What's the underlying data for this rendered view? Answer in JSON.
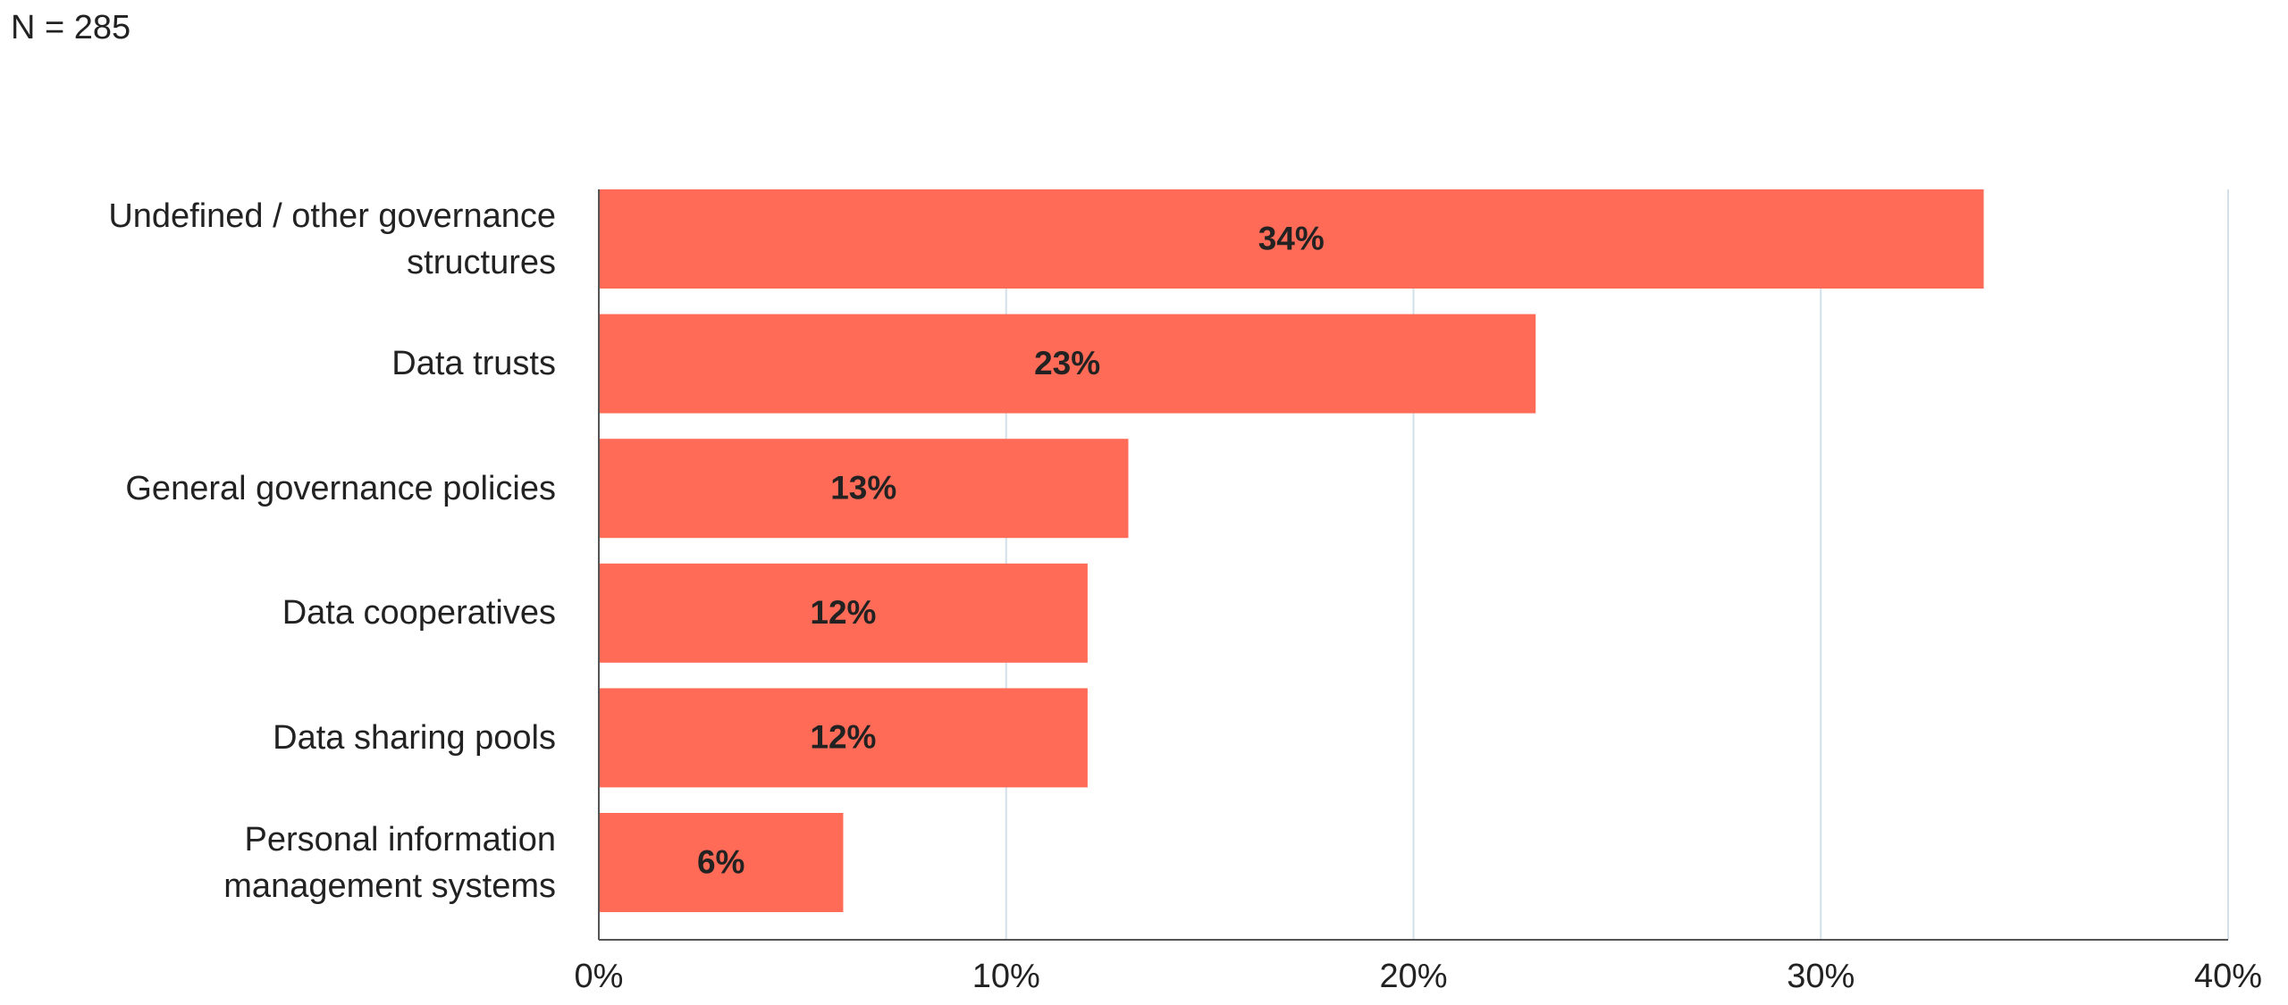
{
  "chart_data": {
    "type": "bar",
    "orientation": "horizontal",
    "subtitle": "N = 285",
    "categories": [
      "Undefined / other governance structures",
      "Data trusts",
      "General governance policies",
      "Data cooperatives",
      "Data sharing pools",
      "Personal information management systems"
    ],
    "values": [
      34,
      23,
      13,
      12,
      12,
      6
    ],
    "value_labels": [
      "34%",
      "23%",
      "13%",
      "12%",
      "12%",
      "6%"
    ],
    "color": "#ff6b57",
    "xlim": [
      0,
      40
    ],
    "xticks": [
      {
        "value": 0,
        "label": "0%"
      },
      {
        "value": 10,
        "label": "10%"
      },
      {
        "value": 20,
        "label": "20%"
      },
      {
        "value": 30,
        "label": "30%"
      },
      {
        "value": 40,
        "label": "40%"
      }
    ],
    "grid": true
  }
}
